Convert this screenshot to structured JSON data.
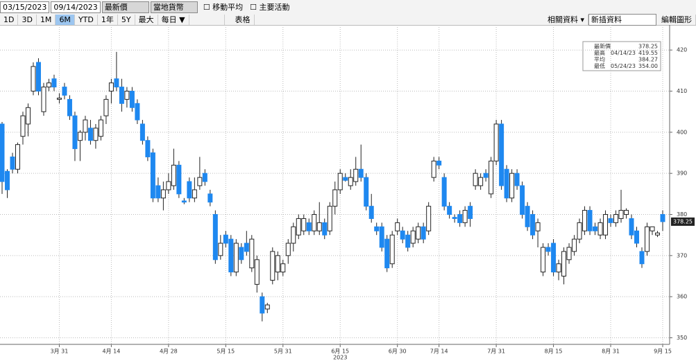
{
  "toolbar": {
    "start_date": "03/15/2023",
    "end_date": "09/14/2023",
    "price_field": "最新價",
    "currency": "當地貨幣",
    "moving_average": "移動平均",
    "key_events": "主要活動",
    "ranges": [
      "1D",
      "3D",
      "1M",
      "6M",
      "YTD",
      "1年",
      "5Y",
      "最大"
    ],
    "active_range": "6M",
    "frequency": "每日 ▼",
    "table": "表格",
    "related": "相關資料 ▾",
    "new_data": "新插資料",
    "edit_chart": "編輯圖形"
  },
  "summary": [
    {
      "label": "最新價",
      "date": "",
      "value": "378.25"
    },
    {
      "label": "最高",
      "date": "04/14/23",
      "value": "419.55"
    },
    {
      "label": "平均",
      "date": "",
      "value": "384.27"
    },
    {
      "label": "最低",
      "date": "05/24/23",
      "value": "354.00"
    }
  ],
  "chart_data": {
    "type": "candlestick",
    "year_label": "2023",
    "colors": {
      "up": "#ffffff",
      "down": "#1e88f0",
      "outline": "#222222"
    },
    "grid": true,
    "categories": [
      null,
      null,
      null,
      null,
      null,
      null,
      null,
      null,
      null,
      null,
      null,
      "3月 31",
      null,
      null,
      null,
      null,
      null,
      null,
      null,
      null,
      null,
      "4月 14",
      null,
      null,
      null,
      null,
      null,
      null,
      null,
      null,
      null,
      null,
      "4月 28",
      null,
      null,
      null,
      null,
      null,
      null,
      null,
      null,
      null,
      null,
      "5月 15",
      null,
      null,
      null,
      null,
      null,
      null,
      null,
      null,
      null,
      null,
      "5月 31",
      null,
      null,
      null,
      null,
      null,
      null,
      null,
      null,
      null,
      null,
      "6月 15",
      null,
      null,
      null,
      null,
      null,
      null,
      null,
      null,
      null,
      null,
      "6月 30",
      null,
      null,
      null,
      null,
      null,
      null,
      null,
      "7月 14",
      null,
      null,
      null,
      null,
      null,
      null,
      null,
      null,
      null,
      null,
      "7月 31",
      null,
      null,
      null,
      null,
      null,
      null,
      null,
      null,
      null,
      null,
      "8月 15",
      null,
      null,
      null,
      null,
      null,
      null,
      null,
      null,
      null,
      null,
      "8月 31",
      null,
      null,
      null,
      null,
      null,
      null,
      null,
      null,
      null,
      "9月 15"
    ],
    "open": [
      402,
      390.5,
      394,
      391,
      399,
      402,
      410,
      417,
      405,
      411,
      413,
      408,
      411,
      408,
      404,
      398,
      400,
      401,
      398,
      399,
      404,
      410,
      413,
      411,
      408,
      410,
      407,
      402,
      398,
      395,
      387,
      384,
      386,
      387,
      392,
      383.3,
      388,
      384,
      387,
      390,
      385,
      380,
      370,
      375,
      374,
      366,
      372,
      373,
      367,
      363,
      360,
      357,
      364,
      366,
      366,
      370,
      373,
      375,
      376,
      378,
      376,
      376,
      378,
      376,
      382,
      386,
      389,
      387,
      388,
      391,
      389,
      382,
      377,
      377,
      374,
      368,
      376,
      376,
      375,
      373,
      374,
      377,
      376,
      389,
      393,
      389,
      382,
      379.3,
      380,
      378,
      382,
      387,
      387,
      390,
      385,
      393,
      402,
      391,
      384,
      390,
      387,
      382,
      380,
      376,
      366,
      372,
      373,
      366,
      365,
      369,
      371,
      374,
      376,
      381,
      377,
      375,
      375,
      379,
      378,
      379,
      380,
      379,
      376,
      371,
      371,
      376,
      375,
      380
    ],
    "high": [
      402.5,
      391,
      395,
      397.5,
      405,
      407,
      417,
      418,
      412,
      413,
      414,
      409.5,
      412,
      409,
      405,
      400.5,
      404,
      403,
      402,
      404,
      409,
      413,
      419.55,
      413,
      411,
      411,
      408,
      403,
      399,
      396,
      389,
      388,
      390,
      396,
      393,
      384,
      389,
      389,
      394,
      391,
      386,
      381,
      375,
      376,
      375,
      374,
      373,
      376,
      375,
      370,
      361,
      358.5,
      372,
      371,
      369,
      374,
      378,
      380,
      380,
      379,
      381,
      383,
      379,
      383,
      388,
      391,
      390,
      391,
      394,
      397,
      390,
      385,
      378,
      378,
      375,
      376,
      379,
      377,
      376,
      377,
      378,
      378,
      383,
      394,
      394,
      390,
      383,
      380,
      381,
      382,
      383,
      391,
      390,
      391,
      394,
      403,
      403,
      392,
      391,
      391,
      388,
      383,
      381,
      379,
      373,
      373,
      374,
      369,
      372,
      373,
      375,
      379,
      382,
      382,
      378,
      379,
      381,
      380,
      381,
      386,
      381.5,
      380,
      377,
      372,
      378,
      377,
      376,
      381
    ],
    "low": [
      385,
      384,
      390,
      390,
      397,
      399,
      409,
      409,
      404,
      410,
      410,
      407,
      408,
      403,
      393,
      393,
      398,
      397,
      396,
      398,
      402,
      407,
      410,
      405,
      406,
      405,
      402,
      397,
      393,
      383,
      383,
      381,
      385,
      386,
      384,
      382.5,
      383,
      383,
      386,
      387,
      382,
      368,
      369,
      372,
      365,
      365,
      368,
      370,
      366,
      361,
      354,
      356,
      363,
      364,
      365,
      368,
      371,
      374,
      375,
      375,
      375,
      375,
      374,
      375,
      380,
      385,
      388,
      386,
      387,
      388,
      381,
      378,
      375,
      371,
      366,
      367,
      375,
      373,
      371,
      372,
      373,
      373,
      375,
      388,
      391,
      381,
      379,
      378,
      377,
      377,
      377,
      386,
      386,
      388,
      384,
      392,
      386,
      383,
      383,
      386,
      379,
      376,
      374,
      372,
      365,
      370,
      365,
      364,
      363,
      368,
      370,
      373,
      375,
      375,
      375,
      374,
      374,
      377,
      377,
      378,
      379,
      374,
      372,
      367,
      370,
      375,
      374.5,
      376
    ],
    "close": [
      388,
      386,
      391,
      397,
      404,
      406,
      416,
      410,
      411,
      412,
      411,
      408.3,
      409,
      404,
      396,
      400,
      403,
      398,
      401,
      403,
      408,
      412,
      411,
      407,
      410,
      406,
      403,
      398,
      394,
      384,
      384,
      386,
      388,
      392,
      385,
      383,
      384,
      386,
      389,
      388,
      383,
      369,
      373,
      373,
      366,
      373,
      369,
      371,
      374,
      369,
      356,
      358,
      371,
      370,
      368,
      373,
      377,
      379,
      379,
      376,
      380,
      378,
      375,
      382,
      386,
      390,
      388.3,
      389,
      391,
      389,
      382,
      379,
      376,
      372,
      367,
      375,
      378,
      374,
      372,
      376,
      377,
      374,
      382,
      393,
      392,
      382,
      380,
      379,
      378,
      381,
      379,
      390,
      389,
      389,
      393,
      402,
      387,
      384,
      390,
      387,
      380,
      377,
      375,
      378,
      372,
      371,
      366,
      368,
      371,
      372,
      374,
      378,
      381,
      376,
      376,
      378,
      380,
      378,
      380,
      381,
      381,
      375,
      373,
      368,
      377,
      377,
      375.5,
      378.25
    ],
    "ylim": [
      348.4,
      426.1
    ],
    "yticks": [
      350,
      360,
      370,
      380,
      390,
      400,
      410,
      420
    ]
  }
}
